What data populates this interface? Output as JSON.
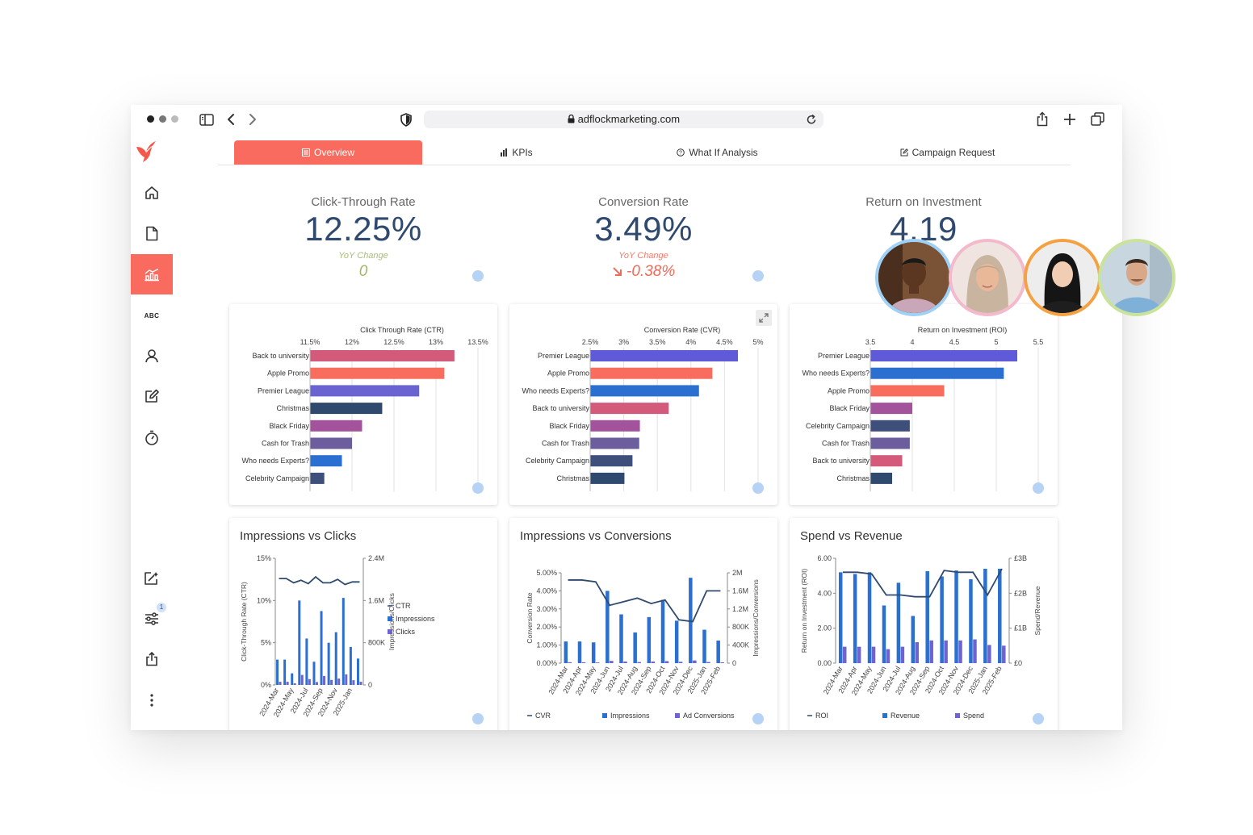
{
  "browser": {
    "url": "adflockmarketing.com"
  },
  "colors": {
    "accent": "#fa6b5f",
    "navy": "#2f4a6e",
    "green": "#9fb86b",
    "red": "#f06a5a",
    "blue": "#2b6fd0",
    "purple": "#6f63cf"
  },
  "sidebar": {
    "items": [
      {
        "name": "home-icon",
        "active": false
      },
      {
        "name": "document-icon",
        "active": false
      },
      {
        "name": "chart-icon",
        "active": true
      },
      {
        "name": "abc-icon",
        "label": "ABC",
        "active": false
      },
      {
        "name": "user-icon",
        "active": false
      },
      {
        "name": "edit-icon",
        "active": false
      },
      {
        "name": "timer-icon",
        "active": false
      }
    ],
    "bottom_items": [
      {
        "name": "magic-edit-icon"
      },
      {
        "name": "filter-sliders-icon",
        "badge": "1"
      },
      {
        "name": "share-icon"
      },
      {
        "name": "more-vertical-icon"
      }
    ]
  },
  "tabs": [
    {
      "label": "Overview",
      "icon": "overview-icon",
      "active": true
    },
    {
      "label": "KPIs",
      "icon": "bar-chart-icon",
      "active": false
    },
    {
      "label": "What If Analysis",
      "icon": "question-icon",
      "active": false
    },
    {
      "label": "Campaign Request",
      "icon": "edit-icon",
      "active": false
    }
  ],
  "kpis": [
    {
      "label": "Click-Through Rate",
      "value": "12.25%",
      "sub_label": "YoY Change",
      "sub_value": "0",
      "trend": "neutral"
    },
    {
      "label": "Conversion Rate",
      "value": "3.49%",
      "sub_label": "YoY Change",
      "sub_value": "-0.38%",
      "trend": "down"
    },
    {
      "label": "Return on Investment",
      "value": "4.19"
    }
  ],
  "chart_data": [
    {
      "type": "bar",
      "orientation": "horizontal",
      "title": "Click Through Rate (CTR)",
      "ticks": [
        "11.5%",
        "12%",
        "12.5%",
        "13%",
        "13.5%"
      ],
      "xlim": [
        11.5,
        13.5
      ],
      "categories": [
        "Back to university",
        "Apple Promo",
        "Premier League",
        "Christmas",
        "Black Friday",
        "Cash for Trash",
        "Who needs Experts?",
        "Celebrity Campaign"
      ],
      "values": [
        13.22,
        13.1,
        12.8,
        12.36,
        12.12,
        12.0,
        11.88,
        11.67
      ],
      "colors": [
        "#d35a7b",
        "#f86d5e",
        "#6a64d3",
        "#2f4a6e",
        "#a3539c",
        "#6b5d9e",
        "#2b6fd0",
        "#3d4f7a"
      ],
      "grid": true
    },
    {
      "type": "bar",
      "orientation": "horizontal",
      "title": "Conversion Rate (CVR)",
      "ticks": [
        "2.5%",
        "3%",
        "3.5%",
        "4%",
        "4.5%",
        "5%"
      ],
      "xlim": [
        2.5,
        5
      ],
      "categories": [
        "Premier League",
        "Apple Promo",
        "Who needs Experts?",
        "Back to university",
        "Black Friday",
        "Cash for Trash",
        "Celebrity Campaign",
        "Christmas"
      ],
      "values": [
        4.7,
        4.32,
        4.12,
        3.67,
        3.24,
        3.23,
        3.13,
        3.01
      ],
      "colors": [
        "#5e5ad8",
        "#f86d5e",
        "#2b6fd0",
        "#d35a7b",
        "#a3539c",
        "#6b5d9e",
        "#3d4f7a",
        "#2f4a6e"
      ],
      "grid": true
    },
    {
      "type": "bar",
      "orientation": "horizontal",
      "title": "Return on Investment (ROI)",
      "ticks": [
        "3.5",
        "4",
        "4.5",
        "5",
        "5.5"
      ],
      "xlim": [
        3.5,
        5.5
      ],
      "categories": [
        "Premier League",
        "Who needs Experts?",
        "Apple Promo",
        "Black Friday",
        "Celebrity Campaign",
        "Cash for Trash",
        "Back to university",
        "Christmas"
      ],
      "values": [
        5.25,
        5.09,
        4.38,
        4.0,
        3.97,
        3.97,
        3.88,
        3.76
      ],
      "colors": [
        "#5e5ad8",
        "#2b6fd0",
        "#f86d5e",
        "#a3539c",
        "#3d4f7a",
        "#6b5d9e",
        "#d35a7b",
        "#2f4a6e"
      ],
      "grid": true
    },
    {
      "type": "bar+line",
      "title": "Impressions vs Clicks",
      "x": [
        "2024-Mar",
        "2024-Apr",
        "2024-May",
        "2024-Jun",
        "2024-Jul",
        "2024-Aug",
        "2024-Sep",
        "2024-Oct",
        "2024-Nov",
        "2024-Dec",
        "2025-Jan",
        "2025-Feb"
      ],
      "x_tick_labels": [
        "2024-Mar",
        "2024-May",
        "2024-Jul",
        "2024-Sep",
        "2024-Nov",
        "2025-Jan"
      ],
      "ylabel_left": "Click-Through Rate (CTR)",
      "ylabel_right": "Impressions/Clicks",
      "left_ticks": [
        "0%",
        "5%",
        "10%",
        "15%"
      ],
      "right_ticks": [
        "0",
        "800K",
        "1.6M",
        "2.4M"
      ],
      "ylim_left": [
        0,
        15
      ],
      "ylim_right": [
        0,
        2400000
      ],
      "series": [
        {
          "name": "CTR",
          "kind": "line",
          "axis": "left",
          "color": "#2f4a6e",
          "values": [
            12.6,
            12.6,
            12.1,
            12.4,
            12.0,
            12.8,
            12.1,
            12.1,
            12.5,
            11.9,
            12.2,
            12.2
          ]
        },
        {
          "name": "Impressions",
          "kind": "bar",
          "axis": "right",
          "color": "#2b6fd0",
          "values": [
            480000,
            480000,
            220000,
            1600000,
            880000,
            440000,
            1400000,
            800000,
            1000000,
            1650000,
            720000,
            500000
          ]
        },
        {
          "name": "Clicks",
          "kind": "bar",
          "axis": "right",
          "color": "#6f63cf",
          "values": [
            60000,
            60000,
            30000,
            190000,
            110000,
            55000,
            170000,
            95000,
            120000,
            200000,
            90000,
            60000
          ]
        }
      ],
      "legend_position": "right"
    },
    {
      "type": "bar+line",
      "title": "Impressions vs Conversions",
      "x": [
        "2024-Mar",
        "2024-Apr",
        "2024-May",
        "2024-Jun",
        "2024-Jul",
        "2024-Aug",
        "2024-Sep",
        "2024-Oct",
        "2024-Nov",
        "2024-Dec",
        "2025-Jan",
        "2025-Feb"
      ],
      "x_tick_labels": [
        "2024-Mar",
        "2024-Apr",
        "2024-May",
        "2024-Jun",
        "2024-Jul",
        "2024-Aug",
        "2024-Sep",
        "2024-Oct",
        "2024-Nov",
        "2024-Dec",
        "2025-Jan",
        "2025-Feb"
      ],
      "ylabel_left": "Conversion Rate",
      "ylabel_right": "Impressions/Conversions",
      "left_ticks": [
        "0.00%",
        "1.00%",
        "2.00%",
        "3.00%",
        "4.00%",
        "5.00%"
      ],
      "right_ticks": [
        "0",
        "400K",
        "800K",
        "1.2M",
        "1.6M",
        "2M"
      ],
      "ylim_left": [
        0,
        5
      ],
      "ylim_right": [
        0,
        2000000
      ],
      "series": [
        {
          "name": "CVR",
          "kind": "line",
          "axis": "left",
          "color": "#2f4a6e",
          "values": [
            4.6,
            4.6,
            4.5,
            3.2,
            3.4,
            3.6,
            3.3,
            3.5,
            2.4,
            2.3,
            4.0,
            4.0
          ]
        },
        {
          "name": "Impressions",
          "kind": "bar",
          "axis": "right",
          "color": "#2b6fd0",
          "values": [
            480000,
            480000,
            460000,
            1600000,
            1080000,
            680000,
            1020000,
            1400000,
            940000,
            1890000,
            740000,
            500000
          ]
        },
        {
          "name": "Ad Conversions",
          "kind": "bar",
          "axis": "right",
          "color": "#6f63cf",
          "values": [
            20000,
            20000,
            15000,
            50000,
            35000,
            25000,
            35000,
            45000,
            30000,
            60000,
            25000,
            18000
          ]
        }
      ],
      "legend_position": "bottom"
    },
    {
      "type": "bar+line",
      "title": "Spend vs Revenue",
      "x": [
        "2024-Mar",
        "2024-Apr",
        "2024-May",
        "2024-Jun",
        "2024-Jul",
        "2024-Aug",
        "2024-Sep",
        "2024-Oct",
        "2024-Nov",
        "2024-Dec",
        "2025-Jan",
        "2025-Feb"
      ],
      "x_tick_labels": [
        "2024-Mar",
        "2024-Apr",
        "2024-May",
        "2024-Jun",
        "2024-Jul",
        "2024-Aug",
        "2024-Sep",
        "2024-Oct",
        "2024-Nov",
        "2024-Dec",
        "2025-Jan",
        "2025-Feb"
      ],
      "ylabel_left": "Return on Investment (ROI)",
      "ylabel_right": "Spend/Revenue",
      "left_ticks": [
        "0.00",
        "2.00",
        "4.00",
        "6.00"
      ],
      "right_ticks": [
        "£0",
        "£1B",
        "£2B",
        "£3B"
      ],
      "ylim_left": [
        0,
        6
      ],
      "ylim_right": [
        0,
        3000000000
      ],
      "series": [
        {
          "name": "ROI",
          "kind": "line",
          "axis": "left",
          "color": "#2f4a6e",
          "values": [
            5.2,
            5.2,
            5.1,
            3.9,
            3.9,
            3.8,
            3.8,
            5.3,
            5.2,
            5.2,
            3.9,
            5.4
          ]
        },
        {
          "name": "Revenue",
          "kind": "bar",
          "axis": "right",
          "color": "#2b6fd0",
          "values": [
            2600000000,
            2550000000,
            2600000000,
            1650000000,
            2300000000,
            1350000000,
            2630000000,
            2480000000,
            2650000000,
            2400000000,
            2700000000,
            2700000000
          ]
        },
        {
          "name": "Spend",
          "kind": "bar",
          "axis": "right",
          "color": "#6f63cf",
          "values": [
            470000000,
            470000000,
            470000000,
            400000000,
            470000000,
            600000000,
            650000000,
            650000000,
            650000000,
            680000000,
            520000000,
            500000000
          ]
        }
      ],
      "legend_position": "bottom"
    }
  ]
}
